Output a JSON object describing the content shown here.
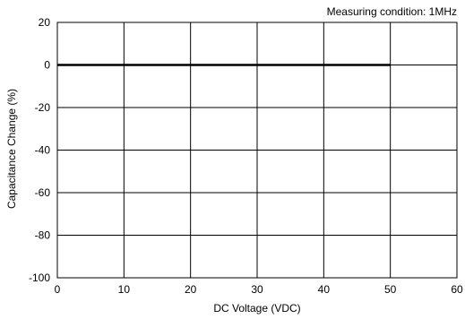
{
  "chart_data": {
    "type": "line",
    "annotation": "Measuring condition: 1MHz",
    "xlabel": "DC Voltage (VDC)",
    "ylabel": "Capacitance Change (%)",
    "xlim": [
      0,
      60
    ],
    "ylim": [
      -100,
      20
    ],
    "x_ticks": [
      0,
      10,
      20,
      30,
      40,
      50,
      60
    ],
    "y_ticks": [
      20,
      0,
      -20,
      -40,
      -60,
      -80,
      -100
    ],
    "grid": true,
    "series": [
      {
        "x": [
          0,
          50
        ],
        "y": [
          0,
          0
        ],
        "color": "#000000"
      }
    ]
  }
}
